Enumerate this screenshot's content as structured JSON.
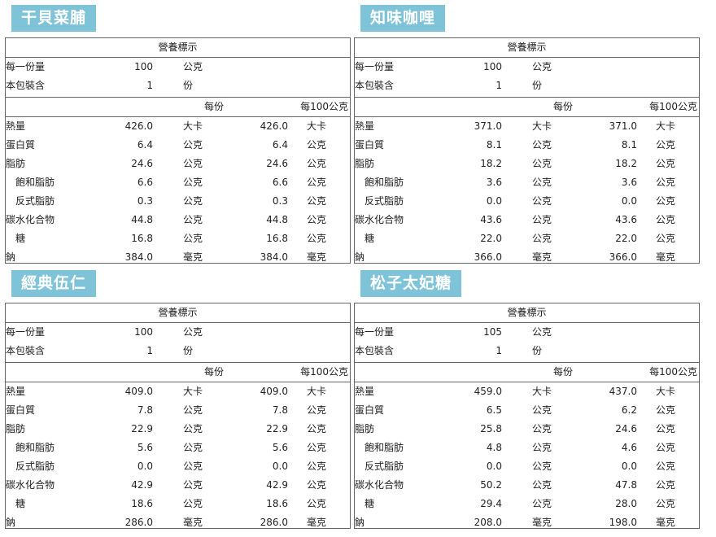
{
  "accent": "#7fc3d9",
  "labels": {
    "header": "營養標示",
    "serving_size": "每一份量",
    "servings_per_pack": "本包裝含",
    "per_serving": "每份",
    "per_100": "每100公克",
    "serving_unit": "公克",
    "servings_unit": "份"
  },
  "products": [
    {
      "name": "干貝菜脯",
      "serving": {
        "size": "100",
        "count": "1"
      },
      "rows": [
        {
          "name": "熱量",
          "v1": "426.0",
          "u1": "大卡",
          "v2": "426.0",
          "u2": "大卡"
        },
        {
          "name": "蛋白質",
          "v1": "6.4",
          "u1": "公克",
          "v2": "6.4",
          "u2": "公克"
        },
        {
          "name": "脂肪",
          "v1": "24.6",
          "u1": "公克",
          "v2": "24.6",
          "u2": "公克"
        },
        {
          "name": "飽和脂肪",
          "v1": "6.6",
          "u1": "公克",
          "v2": "6.6",
          "u2": "公克"
        },
        {
          "name": "反式脂肪",
          "v1": "0.3",
          "u1": "公克",
          "v2": "0.3",
          "u2": "公克"
        },
        {
          "name": "碳水化合物",
          "v1": "44.8",
          "u1": "公克",
          "v2": "44.8",
          "u2": "公克"
        },
        {
          "name": "糖",
          "v1": "16.8",
          "u1": "公克",
          "v2": "16.8",
          "u2": "公克"
        },
        {
          "name": "鈉",
          "v1": "384.0",
          "u1": "毫克",
          "v2": "384.0",
          "u2": "毫克"
        }
      ]
    },
    {
      "name": "知味咖哩",
      "serving": {
        "size": "100",
        "count": "1"
      },
      "rows": [
        {
          "name": "熱量",
          "v1": "371.0",
          "u1": "大卡",
          "v2": "371.0",
          "u2": "大卡"
        },
        {
          "name": "蛋白質",
          "v1": "8.1",
          "u1": "公克",
          "v2": "8.1",
          "u2": "公克"
        },
        {
          "name": "脂肪",
          "v1": "18.2",
          "u1": "公克",
          "v2": "18.2",
          "u2": "公克"
        },
        {
          "name": "飽和脂肪",
          "v1": "3.6",
          "u1": "公克",
          "v2": "3.6",
          "u2": "公克"
        },
        {
          "name": "反式脂肪",
          "v1": "0.0",
          "u1": "公克",
          "v2": "0.0",
          "u2": "公克"
        },
        {
          "name": "碳水化合物",
          "v1": "43.6",
          "u1": "公克",
          "v2": "43.6",
          "u2": "公克"
        },
        {
          "name": "糖",
          "v1": "22.0",
          "u1": "公克",
          "v2": "22.0",
          "u2": "公克"
        },
        {
          "name": "鈉",
          "v1": "366.0",
          "u1": "毫克",
          "v2": "366.0",
          "u2": "毫克"
        }
      ]
    },
    {
      "name": "經典伍仁",
      "serving": {
        "size": "100",
        "count": "1"
      },
      "rows": [
        {
          "name": "熱量",
          "v1": "409.0",
          "u1": "大卡",
          "v2": "409.0",
          "u2": "大卡"
        },
        {
          "name": "蛋白質",
          "v1": "7.8",
          "u1": "公克",
          "v2": "7.8",
          "u2": "公克"
        },
        {
          "name": "脂肪",
          "v1": "22.9",
          "u1": "公克",
          "v2": "22.9",
          "u2": "公克"
        },
        {
          "name": "飽和脂肪",
          "v1": "5.6",
          "u1": "公克",
          "v2": "5.6",
          "u2": "公克"
        },
        {
          "name": "反式脂肪",
          "v1": "0.0",
          "u1": "公克",
          "v2": "0.0",
          "u2": "公克"
        },
        {
          "name": "碳水化合物",
          "v1": "42.9",
          "u1": "公克",
          "v2": "42.9",
          "u2": "公克"
        },
        {
          "name": "糖",
          "v1": "18.6",
          "u1": "公克",
          "v2": "18.6",
          "u2": "公克"
        },
        {
          "name": "鈉",
          "v1": "286.0",
          "u1": "毫克",
          "v2": "286.0",
          "u2": "毫克"
        }
      ]
    },
    {
      "name": "松子太妃糖",
      "serving": {
        "size": "105",
        "count": "1"
      },
      "rows": [
        {
          "name": "熱量",
          "v1": "459.0",
          "u1": "大卡",
          "v2": "437.0",
          "u2": "大卡"
        },
        {
          "name": "蛋白質",
          "v1": "6.5",
          "u1": "公克",
          "v2": "6.2",
          "u2": "公克"
        },
        {
          "name": "脂肪",
          "v1": "25.8",
          "u1": "公克",
          "v2": "24.6",
          "u2": "公克"
        },
        {
          "name": "飽和脂肪",
          "v1": "4.8",
          "u1": "公克",
          "v2": "4.6",
          "u2": "公克"
        },
        {
          "name": "反式脂肪",
          "v1": "0.0",
          "u1": "公克",
          "v2": "0.0",
          "u2": "公克"
        },
        {
          "name": "碳水化合物",
          "v1": "50.2",
          "u1": "公克",
          "v2": "47.8",
          "u2": "公克"
        },
        {
          "name": "糖",
          "v1": "29.4",
          "u1": "公克",
          "v2": "28.0",
          "u2": "公克"
        },
        {
          "name": "鈉",
          "v1": "208.0",
          "u1": "毫克",
          "v2": "198.0",
          "u2": "毫克"
        }
      ]
    }
  ]
}
